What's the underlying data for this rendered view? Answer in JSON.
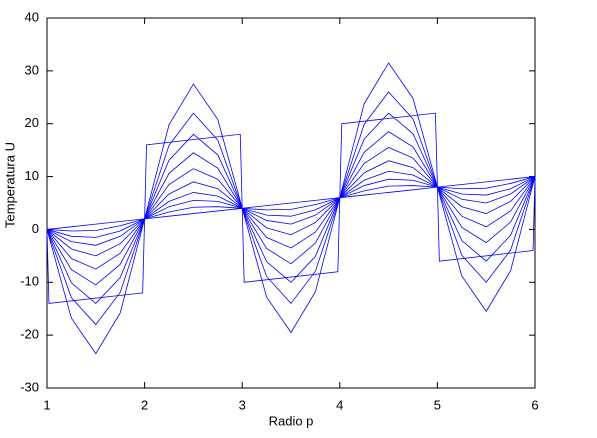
{
  "chart_data": {
    "type": "line",
    "x_label": "Radio p",
    "y_label": "Temperatura U",
    "color": "#0000ff",
    "xlim": [
      1,
      6
    ],
    "ylim": [
      -30,
      40
    ],
    "xticks": [
      1,
      2,
      3,
      4,
      5,
      6
    ],
    "yticks": [
      -30,
      -20,
      -10,
      0,
      10,
      20,
      30,
      40
    ],
    "x": [
      1,
      1.25,
      1.5,
      1.75,
      2,
      2.25,
      2.5,
      2.75,
      3,
      3.25,
      3.5,
      3.75,
      4,
      4.25,
      4.5,
      4.75,
      5,
      5.25,
      5.5,
      5.75,
      6
    ],
    "series": [
      {
        "x": [
          1,
          1.02,
          1.98,
          2.02,
          2.98,
          3.02,
          3.98,
          4.02,
          4.98,
          5.02,
          5.98,
          6
        ],
        "values": [
          0,
          -14,
          -12,
          16,
          18,
          -10,
          -8,
          20,
          22,
          -6,
          -4,
          10
        ]
      },
      {
        "values": [
          0,
          -16.8,
          -23.5,
          -15.8,
          2,
          19.8,
          27.5,
          20.8,
          4,
          -12.8,
          -19.5,
          -11.8,
          6,
          23.8,
          31.5,
          24.8,
          8,
          -8.8,
          -15.5,
          -7.8,
          10
        ]
      },
      {
        "values": [
          0,
          -12.9,
          -18,
          -11.9,
          2,
          15.9,
          22,
          16.9,
          4,
          -8.9,
          -14,
          -7.9,
          6,
          19.9,
          26,
          20.9,
          8,
          -4.9,
          -10,
          -3.9,
          10
        ]
      },
      {
        "values": [
          0,
          -10.1,
          -14,
          -9.1,
          2,
          13.1,
          18,
          14.1,
          4,
          -6.1,
          -10,
          -5.1,
          6,
          17.1,
          22,
          18.1,
          8,
          -2.1,
          -6,
          -1.1,
          10
        ]
      },
      {
        "values": [
          0,
          -7.6,
          -10.5,
          -6.6,
          2,
          10.6,
          14.5,
          11.6,
          4,
          -3.6,
          -6.5,
          -2.6,
          6,
          14.6,
          18.5,
          15.6,
          8,
          0.4,
          -2.5,
          1.4,
          10
        ]
      },
      {
        "values": [
          0,
          -5.5,
          -7.5,
          -4.5,
          2,
          8.5,
          11.5,
          9.5,
          4,
          -1.5,
          -3.5,
          -0.5,
          6,
          12.5,
          15.5,
          13.5,
          8,
          2.5,
          0.5,
          3.5,
          10
        ]
      },
      {
        "values": [
          0,
          -3.7,
          -5,
          -2.7,
          2,
          6.7,
          9,
          7.7,
          4,
          0.3,
          -1,
          1.3,
          6,
          10.7,
          13,
          11.7,
          8,
          4.3,
          3,
          5.3,
          10
        ]
      },
      {
        "values": [
          0,
          -2.3,
          -3,
          -1.3,
          2,
          5.3,
          7,
          6.3,
          4,
          1.7,
          1,
          2.7,
          6,
          9.3,
          11,
          10.3,
          8,
          5.7,
          5,
          6.7,
          10
        ]
      },
      {
        "values": [
          0,
          -1.3,
          -1.5,
          -0.3,
          2,
          4.3,
          5.5,
          5.3,
          4,
          2.7,
          2.5,
          3.7,
          6,
          8.3,
          9.5,
          9.3,
          8,
          6.7,
          6.5,
          7.7,
          10
        ]
      },
      {
        "values": [
          0,
          -0.3,
          -0.2,
          0.7,
          2,
          3.3,
          4.2,
          4.3,
          4,
          3.7,
          3.8,
          4.7,
          6,
          7.3,
          8.2,
          8.3,
          8,
          7.7,
          7.8,
          8.7,
          10
        ]
      },
      {
        "values": [
          0,
          0.5,
          1,
          1.5,
          2,
          2.5,
          3,
          3.5,
          4,
          4.5,
          5,
          5.5,
          6,
          6.5,
          7,
          7.5,
          8,
          8.5,
          9,
          9.5,
          10
        ]
      }
    ]
  }
}
